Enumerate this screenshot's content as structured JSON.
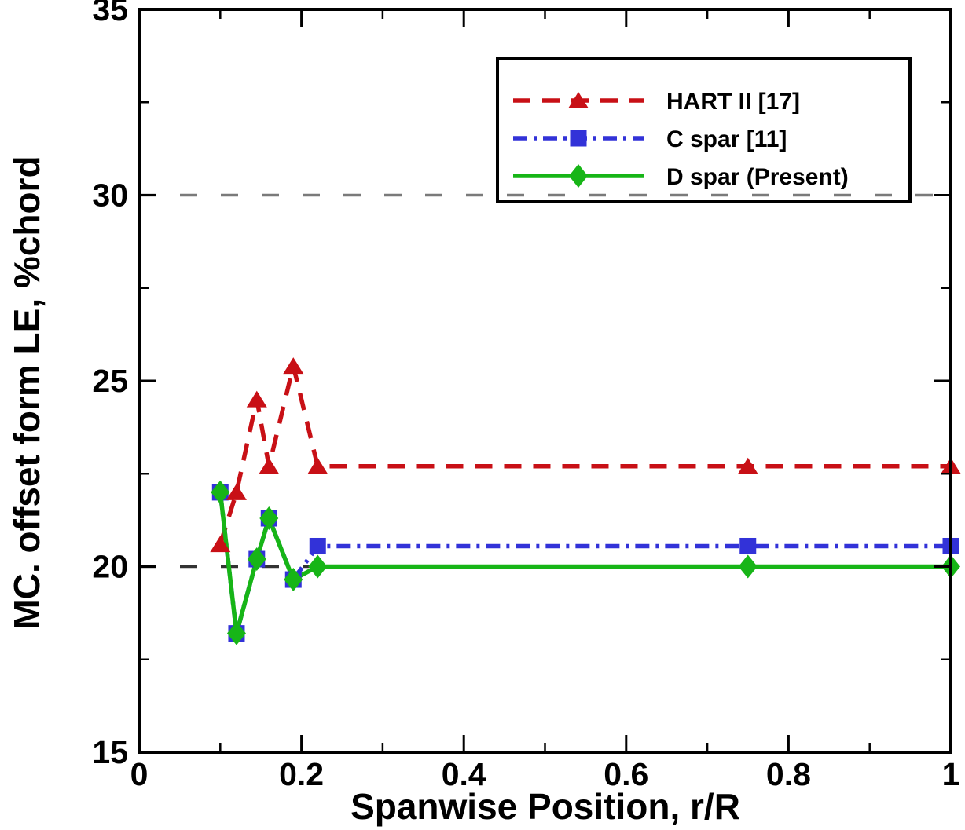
{
  "chart_data": {
    "type": "line",
    "title": "",
    "xlabel": "Spanwise Position, r/R",
    "ylabel": "MC. offset form LE, %chord",
    "xlim": [
      0,
      1
    ],
    "ylim": [
      15,
      35
    ],
    "grid": "dashed-horizontal",
    "legend_position": "top-right",
    "x_ticks": [
      {
        "v": 0,
        "label": "0"
      },
      {
        "v": 0.2,
        "label": "0.2"
      },
      {
        "v": 0.4,
        "label": "0.4"
      },
      {
        "v": 0.6,
        "label": "0.6"
      },
      {
        "v": 0.8,
        "label": "0.8"
      },
      {
        "v": 1,
        "label": "1"
      }
    ],
    "x_minor_ticks": [
      0.1,
      0.3,
      0.5,
      0.7,
      0.9
    ],
    "y_ticks": [
      {
        "v": 15,
        "label": "15"
      },
      {
        "v": 20,
        "label": "20"
      },
      {
        "v": 25,
        "label": "25"
      },
      {
        "v": 30,
        "label": "30"
      },
      {
        "v": 35,
        "label": "35"
      }
    ],
    "y_minor_ticks": [
      17.5,
      22.5,
      27.5,
      32.5
    ],
    "gridlines_y": [
      {
        "y": 30,
        "color": "#7a7a7a"
      },
      {
        "y": 20,
        "color": "#333333"
      }
    ],
    "series": [
      {
        "name": "HART II [17]",
        "color": "#c81016",
        "line_style": "dashed",
        "marker": "triangle",
        "points": [
          [
            0.1,
            20.6
          ],
          [
            0.12,
            22.0
          ],
          [
            0.145,
            24.5
          ],
          [
            0.16,
            22.7
          ],
          [
            0.19,
            25.4
          ],
          [
            0.22,
            22.7
          ],
          [
            0.75,
            22.7
          ],
          [
            1.0,
            22.7
          ]
        ]
      },
      {
        "name": "C spar [11]",
        "color": "#3232d8",
        "line_style": "dash-dot",
        "marker": "square",
        "points": [
          [
            0.1,
            22.0
          ],
          [
            0.12,
            18.2
          ],
          [
            0.145,
            20.2
          ],
          [
            0.16,
            21.3
          ],
          [
            0.19,
            19.65
          ],
          [
            0.22,
            20.55
          ],
          [
            0.75,
            20.55
          ],
          [
            1.0,
            20.55
          ]
        ]
      },
      {
        "name": "D spar (Present)",
        "color": "#17b517",
        "line_style": "solid",
        "marker": "diamond",
        "points": [
          [
            0.1,
            22.0
          ],
          [
            0.12,
            18.2
          ],
          [
            0.145,
            20.2
          ],
          [
            0.16,
            21.3
          ],
          [
            0.19,
            19.65
          ],
          [
            0.22,
            20.0
          ],
          [
            0.75,
            20.0
          ],
          [
            1.0,
            20.0
          ]
        ]
      }
    ]
  }
}
